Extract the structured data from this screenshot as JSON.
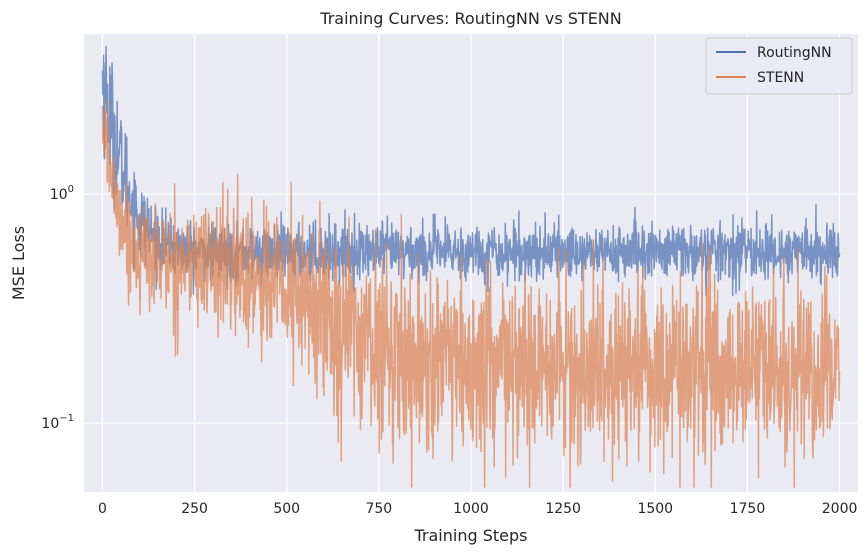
{
  "chart_data": {
    "type": "line",
    "title": "Training Curves: RoutingNN vs STENN",
    "xlabel": "Training Steps",
    "ylabel": "MSE Loss",
    "xlim": [
      -50,
      2050
    ],
    "ylim": [
      0.05,
      5.0
    ],
    "yscale": "log",
    "grid": true,
    "legend_position": "top-right",
    "x_ticks": [
      0,
      250,
      500,
      750,
      1000,
      1250,
      1500,
      1750,
      2000
    ],
    "x_tick_labels": [
      "0",
      "250",
      "500",
      "750",
      "1000",
      "1250",
      "1500",
      "1750",
      "2000"
    ],
    "y_ticks": [
      1,
      0.1
    ],
    "y_tick_bases": [
      "10",
      "10"
    ],
    "y_tick_exps": [
      "0",
      "−1"
    ],
    "series": [
      {
        "name": "RoutingNN",
        "color": "#4c72b0",
        "x": [
          0,
          10,
          20,
          30,
          40,
          50,
          60,
          70,
          80,
          90,
          100,
          125,
          150,
          175,
          200,
          250,
          300,
          350,
          400,
          450,
          500,
          550,
          600,
          650,
          700,
          750,
          800,
          850,
          900,
          950,
          1000,
          1100,
          1200,
          1300,
          1400,
          1500,
          1600,
          1700,
          1800,
          1900,
          2000
        ],
        "values": [
          3.2,
          2.8,
          2.2,
          1.9,
          1.6,
          1.35,
          1.2,
          1.05,
          0.95,
          0.85,
          0.78,
          0.7,
          0.63,
          0.6,
          0.58,
          0.56,
          0.55,
          0.55,
          0.55,
          0.55,
          0.55,
          0.56,
          0.56,
          0.56,
          0.56,
          0.56,
          0.56,
          0.56,
          0.56,
          0.56,
          0.56,
          0.56,
          0.56,
          0.56,
          0.56,
          0.56,
          0.56,
          0.56,
          0.56,
          0.56,
          0.56
        ]
      },
      {
        "name": "STENN",
        "color": "#dd8452",
        "x": [
          0,
          10,
          20,
          30,
          40,
          50,
          60,
          70,
          80,
          90,
          100,
          125,
          150,
          175,
          200,
          250,
          300,
          350,
          400,
          450,
          500,
          550,
          600,
          650,
          700,
          750,
          800,
          850,
          900,
          950,
          1000,
          1100,
          1200,
          1300,
          1400,
          1500,
          1600,
          1700,
          1800,
          1900,
          2000
        ],
        "values": [
          2.0,
          1.7,
          1.3,
          1.05,
          0.9,
          0.8,
          0.72,
          0.66,
          0.6,
          0.57,
          0.55,
          0.53,
          0.52,
          0.51,
          0.5,
          0.5,
          0.5,
          0.48,
          0.45,
          0.42,
          0.38,
          0.34,
          0.3,
          0.27,
          0.24,
          0.22,
          0.2,
          0.19,
          0.18,
          0.17,
          0.17,
          0.17,
          0.17,
          0.17,
          0.17,
          0.17,
          0.17,
          0.17,
          0.17,
          0.17,
          0.17
        ]
      }
    ],
    "noise": {
      "RoutingNN": {
        "early_sd": 0.35,
        "late_sd": 0.14,
        "transition_step": 150
      },
      "STENN": {
        "early_sd": 0.2,
        "late_sd": 0.45,
        "transition_step": 600
      }
    }
  }
}
